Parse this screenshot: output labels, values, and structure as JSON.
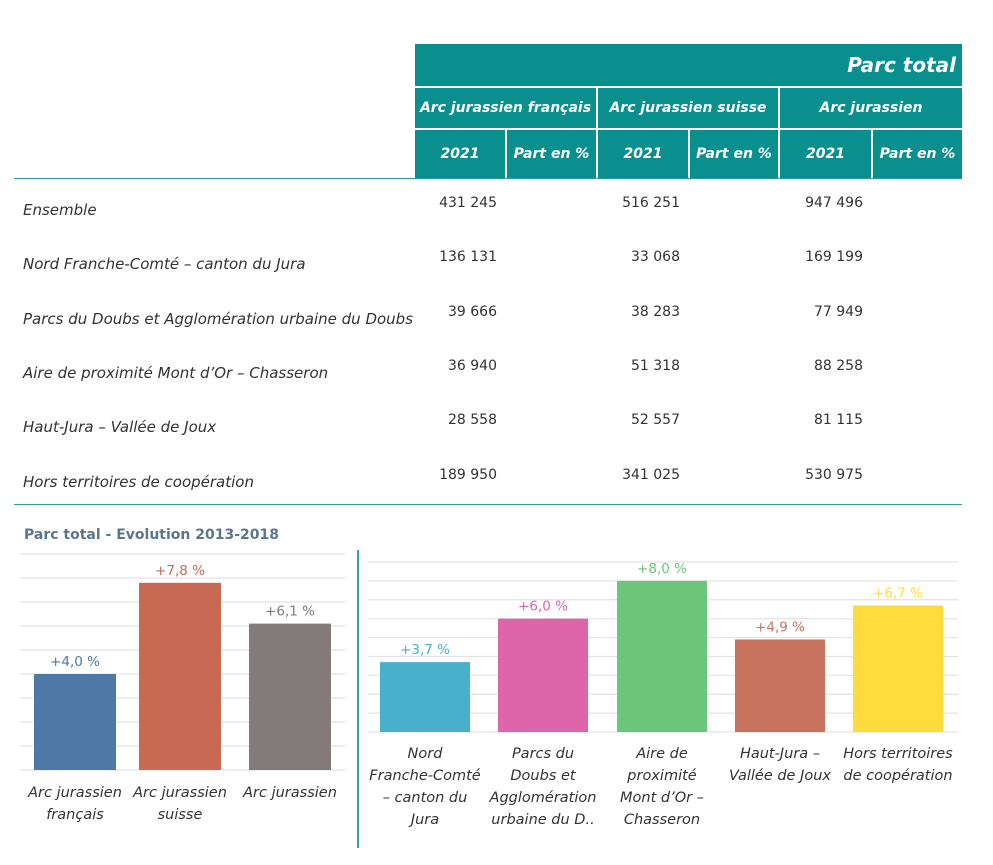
{
  "table": {
    "title": "Parc total",
    "groups": [
      "Arc jurassien français",
      "Arc jurassien suisse",
      "Arc jurassien"
    ],
    "subheaders": [
      "2021",
      "Part en %"
    ],
    "rows": [
      {
        "label": "Ensemble",
        "values": [
          "431 245",
          "516 251",
          "947 496"
        ]
      },
      {
        "label": "Nord Franche-Comté – canton du Jura",
        "values": [
          "136 131",
          "33 068",
          "169 199"
        ]
      },
      {
        "label": "Parcs du Doubs et Agglomération urbaine du Doubs",
        "values": [
          "39 666",
          "38 283",
          "77 949"
        ]
      },
      {
        "label": "Aire de proximité Mont d’Or – Chasseron",
        "values": [
          "36 940",
          "51 318",
          "88 258"
        ]
      },
      {
        "label": "Haut-Jura – Vallée de Joux",
        "values": [
          "28 558",
          "52 557",
          "81 115"
        ]
      },
      {
        "label": "Hors territoires de coopération",
        "values": [
          "189 950",
          "341 025",
          "530 975"
        ]
      }
    ]
  },
  "chart_title": "Parc total - Evolution 2013-2018",
  "chart_data": [
    {
      "type": "bar",
      "title": "Parc total - Evolution 2013-2018",
      "categories": [
        [
          "Arc jurassien",
          "français"
        ],
        [
          "Arc jurassien",
          "suisse"
        ],
        [
          "Arc jurassien"
        ]
      ],
      "values": [
        4.0,
        7.8,
        6.1
      ],
      "labels": [
        "+4,0 %",
        "+7,8 %",
        "+6,1 %"
      ],
      "colors": [
        "#4e79a7",
        "#c96a54",
        "#837a7b"
      ],
      "ylim": [
        0,
        9
      ],
      "grid": true
    },
    {
      "type": "bar",
      "categories": [
        [
          "Nord",
          "Franche-Comté",
          "– canton du",
          "Jura"
        ],
        [
          "Parcs du",
          "Doubs et",
          "Agglomération",
          "urbaine du D.."
        ],
        [
          "Aire de",
          "proximité",
          "Mont d’Or –",
          "Chasseron"
        ],
        [
          "Haut-Jura –",
          "Vallée de Joux"
        ],
        [
          "Hors territoires",
          "de coopération"
        ]
      ],
      "values": [
        3.7,
        6.0,
        8.0,
        4.9,
        6.7
      ],
      "labels": [
        "+3,7 %",
        "+6,0 %",
        "+8,0 %",
        "+4,9 %",
        "+6,7 %"
      ],
      "colors": [
        "#49b0cc",
        "#de65a9",
        "#6bc57a",
        "#c8735d",
        "#fddc3c"
      ],
      "ylim": [
        0,
        9
      ],
      "grid": true
    }
  ]
}
